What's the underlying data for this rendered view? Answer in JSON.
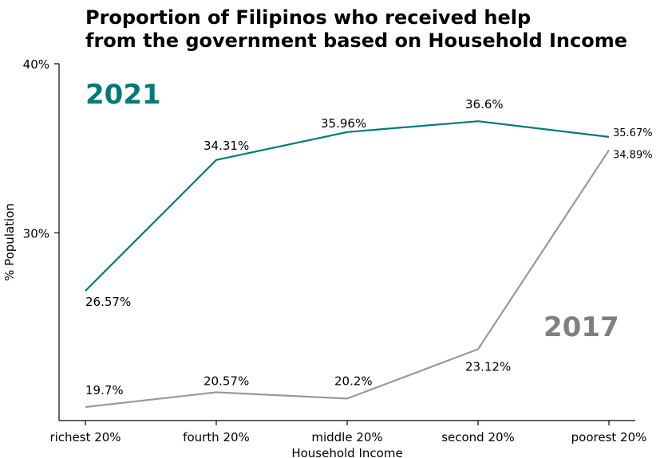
{
  "chart_data": {
    "type": "line",
    "title": "Proportion of Filipinos who received help from the government based on Household Income",
    "title_lines": [
      "Proportion of Filipinos who received help",
      "from the government based on Household Income"
    ],
    "xlabel": "Household Income",
    "ylabel": "% Population",
    "categories": [
      "richest 20%",
      "fourth 20%",
      "middle 20%",
      "second 20%",
      "poorest 20%"
    ],
    "ylim": [
      18.9,
      40
    ],
    "yticks": [
      30,
      40
    ],
    "ytick_labels": [
      "30%",
      "40%"
    ],
    "grid": false,
    "legend": "inline series labels",
    "series": [
      {
        "name": "2021",
        "color": "#007a78",
        "values": [
          26.57,
          34.31,
          35.96,
          36.6,
          35.67
        ],
        "labels": [
          "26.57%",
          "34.31%",
          "35.96%",
          "36.6%",
          "35.67%"
        ]
      },
      {
        "name": "2017",
        "color": "#999999",
        "name_color": "#808080",
        "values": [
          19.7,
          20.57,
          20.2,
          23.12,
          34.89
        ],
        "labels": [
          "19.7%",
          "20.57%",
          "20.2%",
          "23.12%",
          "34.89%"
        ]
      }
    ]
  }
}
